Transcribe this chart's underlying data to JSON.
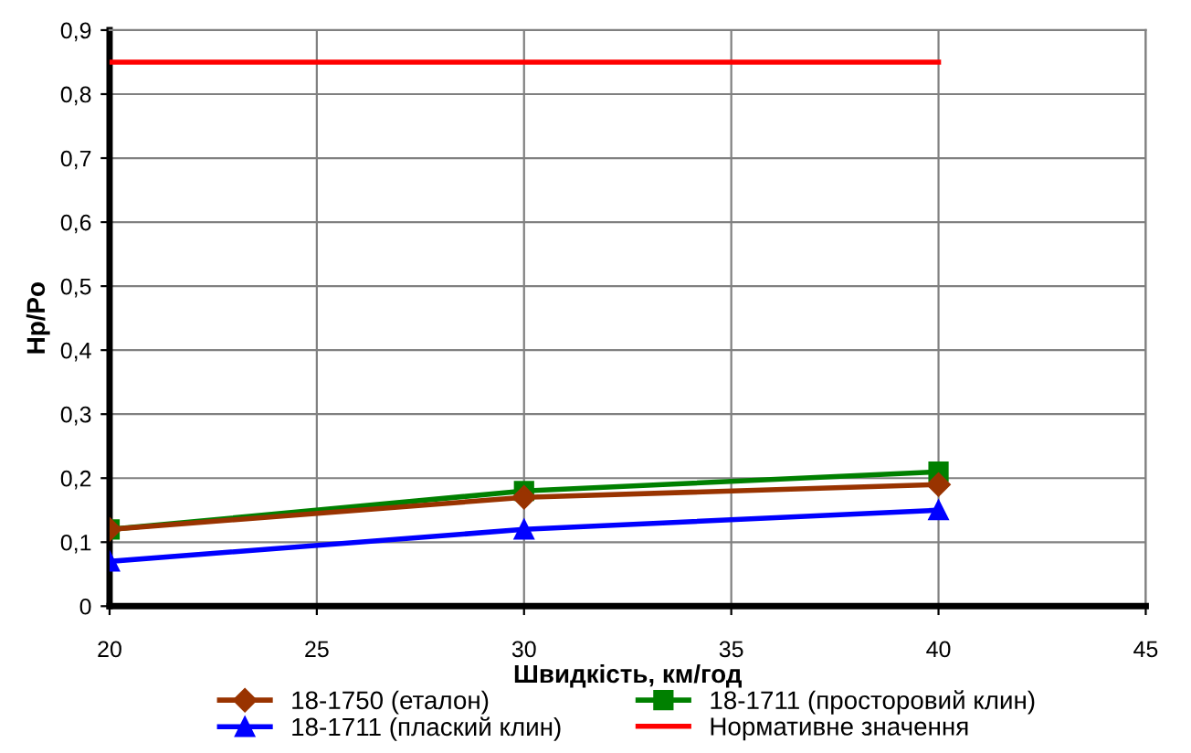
{
  "chart_data": {
    "type": "line",
    "xlabel": "Швидкість, км/год",
    "ylabel": "Hp/Po",
    "xlim": [
      20,
      45
    ],
    "xticks": [
      20,
      25,
      30,
      35,
      40,
      45
    ],
    "ylim": [
      0,
      0.9
    ],
    "yticks": [
      0,
      {
        "value": 0.1,
        "label": "0,1"
      },
      {
        "value": 0.2,
        "label": "0,2"
      },
      {
        "value": 0.3,
        "label": "0,3"
      },
      {
        "value": 0.4,
        "label": "0,4"
      },
      {
        "value": 0.5,
        "label": "0,5"
      },
      {
        "value": 0.6,
        "label": "0,6"
      },
      {
        "value": 0.7,
        "label": "0,7"
      },
      {
        "value": 0.8,
        "label": "0,8"
      },
      {
        "value": 0.9,
        "label": "0,9"
      }
    ],
    "grid": true,
    "legend": "bottom",
    "line_style": "solid",
    "series": [
      {
        "name": "18-1750 (еталон)",
        "color": "#993300",
        "marker": "diamond",
        "x": [
          20,
          30,
          40
        ],
        "values": [
          0.12,
          0.17,
          0.19
        ]
      },
      {
        "name": "18-1711 (просторовий клин)",
        "color": "#008000",
        "marker": "square",
        "x": [
          20,
          30,
          40
        ],
        "values": [
          0.12,
          0.18,
          0.21
        ]
      },
      {
        "name": "18-1711 (плаский клин)",
        "color": "#0000ff",
        "marker": "triangle",
        "x": [
          20,
          30,
          40
        ],
        "values": [
          0.07,
          0.12,
          0.15
        ]
      },
      {
        "name": "Нормативне значення",
        "color": "#ff0000",
        "marker": "none",
        "x": [
          20,
          30,
          40
        ],
        "values": [
          0.85,
          0.85,
          0.85
        ]
      }
    ]
  }
}
